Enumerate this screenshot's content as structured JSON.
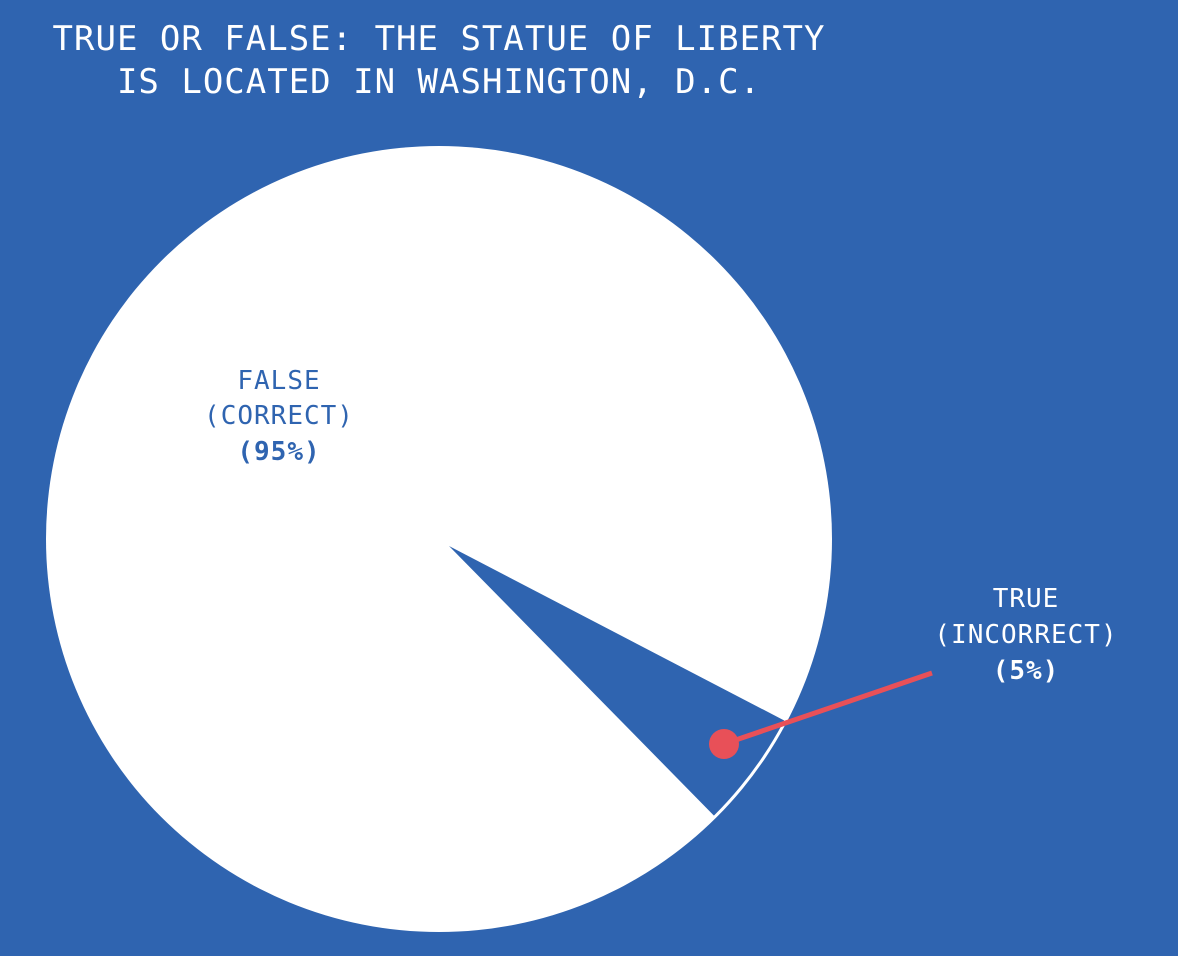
{
  "chart_data": {
    "type": "pie",
    "title": [
      "TRUE OR FALSE: THE STATUE OF LIBERTY",
      "IS LOCATED IN WASHINGTON, D.C."
    ],
    "slices": [
      {
        "name": "FALSE",
        "note": "(CORRECT)",
        "value": 95,
        "value_label": "(95%)",
        "color": "#ffffff",
        "label_color": "#2f64b0"
      },
      {
        "name": "TRUE",
        "note": "(INCORRECT)",
        "value": 5,
        "value_label": "(5%)",
        "color": "#2f64b0",
        "label_color": "#ffffff"
      }
    ],
    "legend": "none",
    "callout_color": "#e85058"
  },
  "colors": {
    "background": "#2f64b0",
    "text_light": "#ffffff"
  }
}
